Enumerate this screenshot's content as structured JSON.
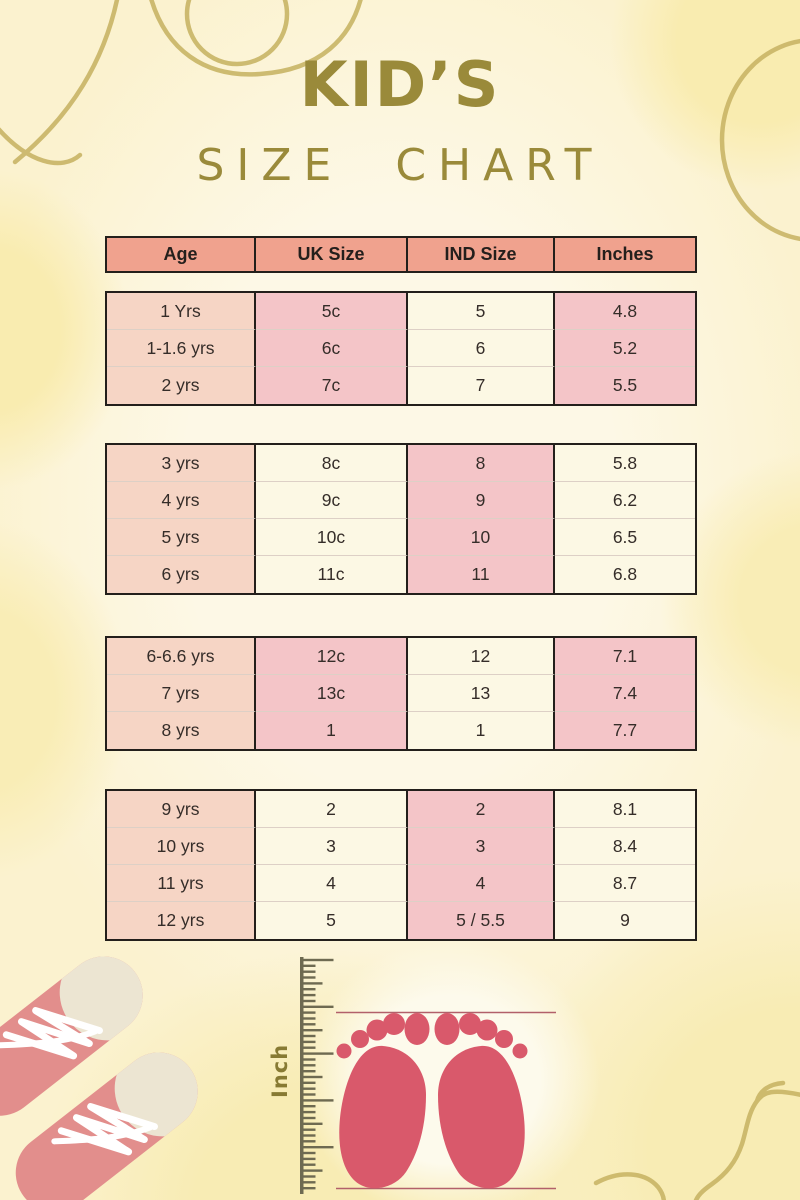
{
  "title": {
    "main": "KID’S",
    "sub": "SIZE CHART"
  },
  "table": {
    "header": [
      "Age",
      "UK Size",
      "IND Size",
      "Inches"
    ],
    "groups": [
      {
        "pattern": "A",
        "rows": [
          [
            "1 Yrs",
            "5c",
            "5",
            "4.8"
          ],
          [
            "1-1.6 yrs",
            "6c",
            "6",
            "5.2"
          ],
          [
            "2 yrs",
            "7c",
            "7",
            "5.5"
          ]
        ]
      },
      {
        "pattern": "B",
        "rows": [
          [
            "3 yrs",
            "8c",
            "8",
            "5.8"
          ],
          [
            "4 yrs",
            "9c",
            "9",
            "6.2"
          ],
          [
            "5 yrs",
            "10c",
            "10",
            "6.5"
          ],
          [
            "6 yrs",
            "11c",
            "11",
            "6.8"
          ]
        ]
      },
      {
        "pattern": "A",
        "rows": [
          [
            "6-6.6 yrs",
            "12c",
            "12",
            "7.1"
          ],
          [
            "7 yrs",
            "13c",
            "13",
            "7.4"
          ],
          [
            "8 yrs",
            "1",
            "1",
            "7.7"
          ]
        ]
      },
      {
        "pattern": "B",
        "rows": [
          [
            "9 yrs",
            "2",
            "2",
            "8.1"
          ],
          [
            "10 yrs",
            "3",
            "3",
            "8.4"
          ],
          [
            "11 yrs",
            "4",
            "4",
            "8.7"
          ],
          [
            "12 yrs",
            "5",
            "5 / 5.5",
            "9"
          ]
        ]
      }
    ]
  },
  "ruler": {
    "label": "Inch"
  },
  "colors": {
    "background": "#fbf2cf",
    "accent_gold": "#9a8a3a",
    "decor_line": "#c9b566",
    "header_bg": "#f0a28e",
    "cell_age": "#f6d5c5",
    "cell_pink": "#f4c5c8",
    "cell_cream": "#fcf8e4",
    "border_dark": "#231f1b",
    "foot_pink": "#d9596b",
    "shoe_pink": "#e28e8c",
    "shoe_cap": "#ece5d2",
    "ruler_tick": "#6e6a51"
  },
  "chart_data": {
    "type": "table",
    "title": "KID’S SIZE CHART",
    "columns": [
      "Age",
      "UK Size",
      "IND Size",
      "Inches"
    ],
    "rows": [
      [
        "1 Yrs",
        "5c",
        "5",
        "4.8"
      ],
      [
        "1-1.6 yrs",
        "6c",
        "6",
        "5.2"
      ],
      [
        "2 yrs",
        "7c",
        "7",
        "5.5"
      ],
      [
        "3 yrs",
        "8c",
        "8",
        "5.8"
      ],
      [
        "4 yrs",
        "9c",
        "9",
        "6.2"
      ],
      [
        "5 yrs",
        "10c",
        "10",
        "6.5"
      ],
      [
        "6 yrs",
        "11c",
        "11",
        "6.8"
      ],
      [
        "6-6.6 yrs",
        "12c",
        "12",
        "7.1"
      ],
      [
        "7 yrs",
        "13c",
        "13",
        "7.4"
      ],
      [
        "8 yrs",
        "1",
        "1",
        "7.7"
      ],
      [
        "9 yrs",
        "2",
        "2",
        "8.1"
      ],
      [
        "10 yrs",
        "3",
        "3",
        "8.4"
      ],
      [
        "11 yrs",
        "4",
        "4",
        "8.7"
      ],
      [
        "12 yrs",
        "5",
        "5 / 5.5",
        "9"
      ]
    ]
  }
}
